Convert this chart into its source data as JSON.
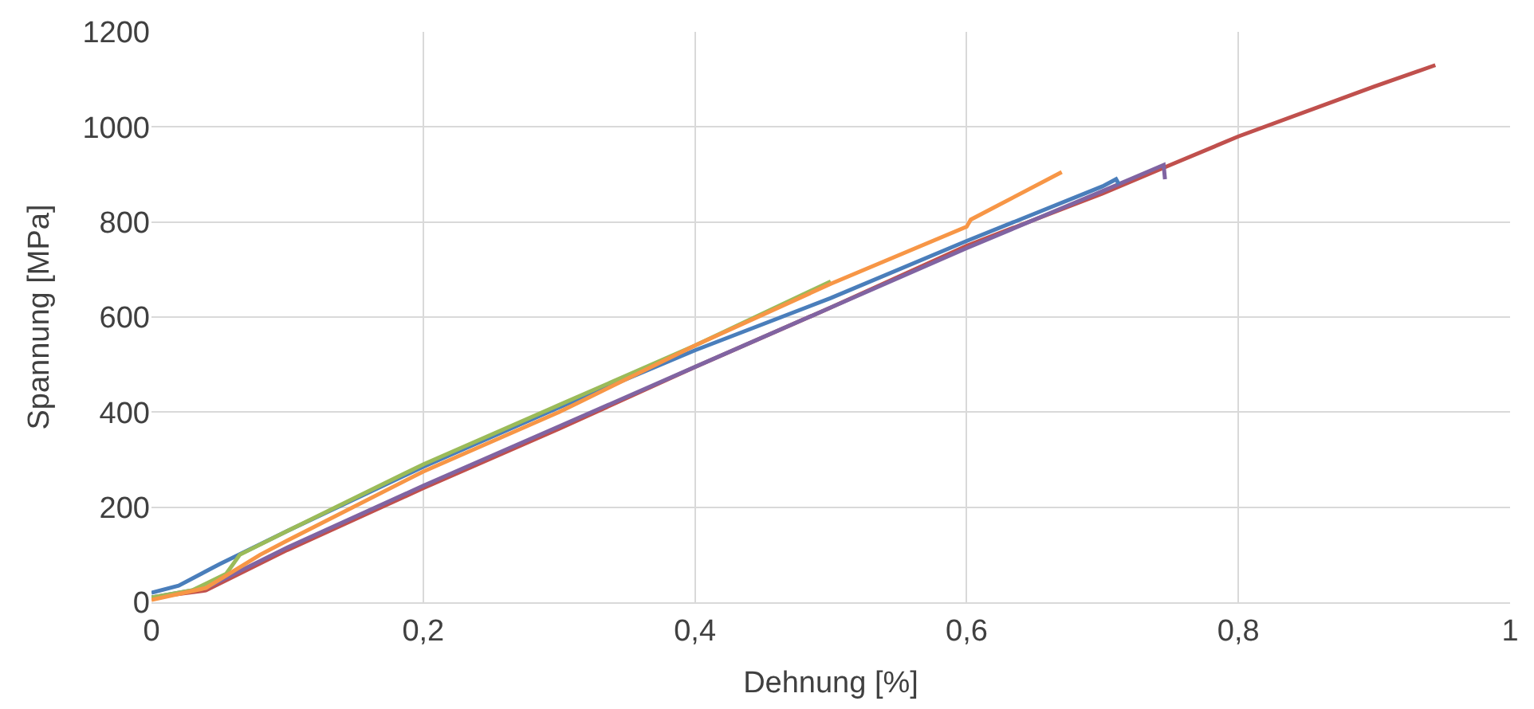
{
  "chart_data": {
    "type": "line",
    "xlabel": "Dehnung [%]",
    "ylabel": "Spannung [MPa]",
    "xlim": [
      0,
      1
    ],
    "xticks": [
      {
        "value": 0,
        "label": "0"
      },
      {
        "value": 0.2,
        "label": "0,2"
      },
      {
        "value": 0.4,
        "label": "0,4"
      },
      {
        "value": 0.6,
        "label": "0,6"
      },
      {
        "value": 0.8,
        "label": "0,8"
      },
      {
        "value": 1,
        "label": "1"
      }
    ],
    "ylim": [
      0,
      1200
    ],
    "yticks": [
      0,
      200,
      400,
      600,
      800,
      1000,
      1200
    ],
    "grid": true,
    "legend": false,
    "marker": "none",
    "line_style": "solid",
    "series": [
      {
        "color": "#c0504d",
        "x": [
          0,
          0.04,
          0.1,
          0.2,
          0.3,
          0.4,
          0.5,
          0.6,
          0.7,
          0.75,
          0.8,
          0.9,
          0.945
        ],
        "values": [
          10,
          25,
          110,
          240,
          365,
          495,
          620,
          750,
          860,
          920,
          980,
          1085,
          1130
        ]
      },
      {
        "color": "#8064a2",
        "x": [
          0,
          0.04,
          0.1,
          0.2,
          0.3,
          0.4,
          0.5,
          0.6,
          0.7,
          0.745,
          0.746
        ],
        "values": [
          10,
          30,
          115,
          245,
          370,
          495,
          620,
          745,
          865,
          920,
          890
        ]
      },
      {
        "color": "#4a7ebb",
        "x": [
          0,
          0.02,
          0.05,
          0.1,
          0.2,
          0.3,
          0.4,
          0.5,
          0.6,
          0.7,
          0.71,
          0.712
        ],
        "values": [
          20,
          35,
          80,
          150,
          285,
          410,
          530,
          640,
          760,
          875,
          890,
          880
        ]
      },
      {
        "color": "#9bbb59",
        "x": [
          0,
          0.03,
          0.055,
          0.065,
          0.1,
          0.2,
          0.3,
          0.4,
          0.5
        ],
        "values": [
          10,
          25,
          60,
          100,
          150,
          290,
          415,
          540,
          675
        ]
      },
      {
        "color": "#f79646",
        "x": [
          0,
          0.04,
          0.08,
          0.1,
          0.2,
          0.3,
          0.4,
          0.5,
          0.6,
          0.603,
          0.67
        ],
        "values": [
          5,
          30,
          100,
          130,
          275,
          400,
          540,
          670,
          790,
          805,
          905
        ]
      }
    ]
  }
}
